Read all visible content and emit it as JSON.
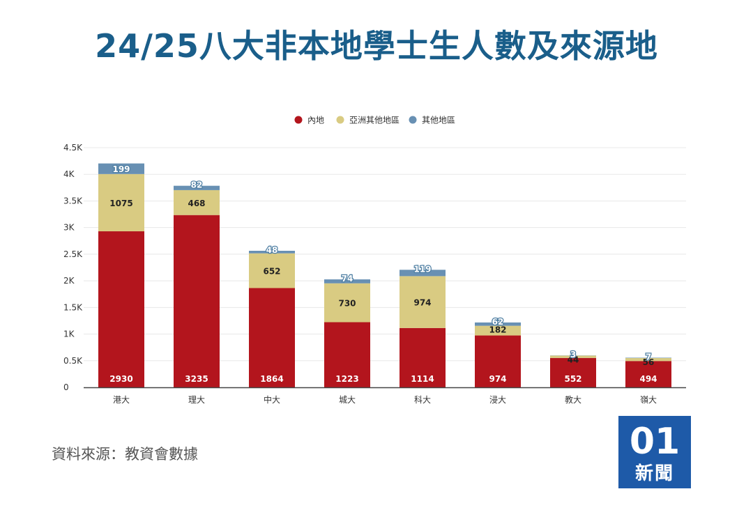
{
  "title": "24/25八大非本地學士生人數及來源地",
  "source": "資料來源：教資會數據",
  "logo": {
    "mark": "01",
    "name": "新聞",
    "color": "#1e5aa8"
  },
  "colors": {
    "title": "#1a5e8a",
    "mainland": "#b3151d",
    "asia": "#d9cb82",
    "other": "#6890b3"
  },
  "chart_data": {
    "type": "bar",
    "stacked": true,
    "categories": [
      "港大",
      "理大",
      "中大",
      "城大",
      "科大",
      "浸大",
      "教大",
      "嶺大"
    ],
    "series": [
      {
        "name": "內地",
        "values": [
          2930,
          3235,
          1864,
          1223,
          1114,
          974,
          552,
          494
        ],
        "color": "#b3151d"
      },
      {
        "name": "亞洲其他地區",
        "values": [
          1075,
          468,
          652,
          730,
          974,
          182,
          44,
          56
        ],
        "color": "#d9cb82"
      },
      {
        "name": "其他地區",
        "values": [
          199,
          82,
          48,
          74,
          119,
          62,
          3,
          7
        ],
        "color": "#6890b3"
      }
    ],
    "ylim": [
      0,
      4500
    ],
    "yticks": [
      {
        "value": 0,
        "label": "0"
      },
      {
        "value": 500,
        "label": "0.5K"
      },
      {
        "value": 1000,
        "label": "1K"
      },
      {
        "value": 1500,
        "label": "1.5K"
      },
      {
        "value": 2000,
        "label": "2K"
      },
      {
        "value": 2500,
        "label": "2.5K"
      },
      {
        "value": 3000,
        "label": "3K"
      },
      {
        "value": 3500,
        "label": "3.5K"
      },
      {
        "value": 4000,
        "label": "4K"
      },
      {
        "value": 4500,
        "label": "4.5K"
      }
    ],
    "legend_position": "top-center",
    "grid": true,
    "xlabel": "",
    "ylabel": ""
  }
}
